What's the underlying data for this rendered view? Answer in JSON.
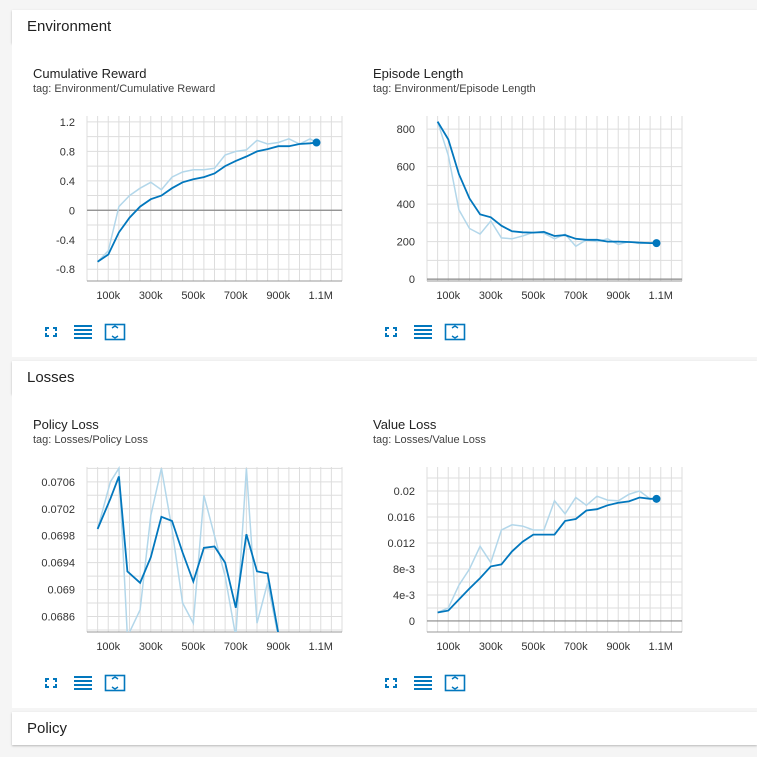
{
  "sections": [
    {
      "name": "Environment"
    },
    {
      "name": "Losses"
    },
    {
      "name": "Policy"
    }
  ],
  "toolbar_icons": [
    "fullscreen-icon",
    "toggle-log-scale-icon",
    "fit-domain-icon"
  ],
  "colors": {
    "smoothed": "#0277bd",
    "raw": "#b3d7ea",
    "grid": "#dddddd",
    "axis": "#999999"
  },
  "chart_data": [
    {
      "type": "line",
      "title": "Cumulative Reward",
      "tag": "tag: Environment/Cumulative Reward",
      "x_ticks": [
        "100k",
        "300k",
        "500k",
        "700k",
        "900k",
        "1.1M"
      ],
      "y_ticks": [
        "1.2",
        "0.8",
        "0.4",
        "0",
        "-0.4",
        "-0.8"
      ],
      "y_tick_values": [
        1.2,
        0.8,
        0.4,
        0,
        -0.4,
        -0.8
      ],
      "x_tick_values": [
        100000,
        300000,
        500000,
        700000,
        900000,
        1100000
      ],
      "xlim": [
        0,
        1200000
      ],
      "ylim": [
        -0.96,
        1.28
      ],
      "grid": true,
      "series": [
        {
          "x": [
            50000,
            100000,
            150000,
            200000,
            250000,
            300000,
            350000,
            400000,
            450000,
            500000,
            550000,
            600000,
            650000,
            700000,
            750000,
            800000,
            850000,
            900000,
            950000,
            1000000,
            1050000,
            1080000
          ],
          "y": [
            -0.7,
            -0.6,
            -0.3,
            -0.1,
            0.05,
            0.15,
            0.2,
            0.3,
            0.38,
            0.42,
            0.45,
            0.5,
            0.6,
            0.67,
            0.73,
            0.8,
            0.83,
            0.87,
            0.87,
            0.9,
            0.91,
            0.92
          ]
        },
        {
          "x": [
            50000,
            100000,
            150000,
            200000,
            250000,
            300000,
            350000,
            400000,
            450000,
            500000,
            550000,
            600000,
            650000,
            700000,
            750000,
            800000,
            850000,
            900000,
            950000,
            1000000,
            1050000,
            1080000
          ],
          "y": [
            -0.7,
            -0.55,
            0.05,
            0.2,
            0.3,
            0.38,
            0.28,
            0.45,
            0.52,
            0.55,
            0.55,
            0.57,
            0.75,
            0.8,
            0.82,
            0.95,
            0.9,
            0.92,
            0.97,
            0.9,
            0.97,
            0.92
          ]
        }
      ]
    },
    {
      "type": "line",
      "title": "Episode Length",
      "tag": "tag: Environment/Episode Length",
      "x_ticks": [
        "100k",
        "300k",
        "500k",
        "700k",
        "900k",
        "1.1M"
      ],
      "y_ticks": [
        "800",
        "600",
        "400",
        "200",
        "0"
      ],
      "y_tick_values": [
        800,
        600,
        400,
        200,
        0
      ],
      "x_tick_values": [
        100000,
        300000,
        500000,
        700000,
        900000,
        1100000
      ],
      "xlim": [
        0,
        1200000
      ],
      "ylim": [
        -10,
        870
      ],
      "grid": true,
      "series": [
        {
          "x": [
            50000,
            100000,
            150000,
            200000,
            250000,
            300000,
            350000,
            400000,
            450000,
            500000,
            550000,
            600000,
            650000,
            700000,
            750000,
            800000,
            850000,
            900000,
            950000,
            1000000,
            1050000,
            1080000
          ],
          "y": [
            840,
            745,
            560,
            430,
            345,
            330,
            285,
            255,
            250,
            248,
            252,
            230,
            235,
            215,
            210,
            210,
            200,
            200,
            198,
            195,
            192,
            192
          ]
        },
        {
          "x": [
            50000,
            100000,
            150000,
            200000,
            250000,
            300000,
            350000,
            400000,
            450000,
            500000,
            550000,
            600000,
            650000,
            700000,
            750000,
            800000,
            850000,
            900000,
            950000,
            1000000,
            1050000,
            1080000
          ],
          "y": [
            840,
            660,
            370,
            270,
            240,
            310,
            220,
            215,
            230,
            250,
            245,
            215,
            240,
            175,
            210,
            200,
            215,
            185,
            200,
            190,
            195,
            192
          ]
        }
      ]
    },
    {
      "type": "line",
      "title": "Policy Loss",
      "tag": "tag: Losses/Policy Loss",
      "x_ticks": [
        "100k",
        "300k",
        "500k",
        "700k",
        "900k",
        "1.1M"
      ],
      "y_ticks": [
        "0.0706",
        "0.0702",
        "0.0698",
        "0.0694",
        "0.069",
        "0.0686"
      ],
      "y_tick_values": [
        0.0706,
        0.0702,
        0.0698,
        0.0694,
        0.069,
        0.0686
      ],
      "x_tick_values": [
        100000,
        300000,
        500000,
        700000,
        900000,
        1100000
      ],
      "xlim": [
        0,
        1200000
      ],
      "ylim": [
        0.06837,
        0.07082
      ],
      "grid": true,
      "series": [
        {
          "x": [
            50000,
            110000,
            150000,
            190000,
            250000,
            300000,
            350000,
            400000,
            450000,
            500000,
            550000,
            600000,
            650000,
            700000,
            750000,
            800000,
            850000,
            900000,
            950000,
            1000000,
            1040000
          ],
          "y": [
            0.0699,
            0.07035,
            0.07068,
            0.06927,
            0.0691,
            0.06948,
            0.07008,
            0.07002,
            0.06955,
            0.06912,
            0.06962,
            0.06964,
            0.0694,
            0.06873,
            0.06982,
            0.06927,
            0.06924,
            0.06835,
            0.06835,
            0.06835,
            0.06835
          ]
        },
        {
          "x": [
            50000,
            110000,
            150000,
            190000,
            250000,
            300000,
            350000,
            400000,
            450000,
            500000,
            550000,
            600000,
            650000,
            700000,
            750000,
            800000,
            850000,
            900000,
            950000,
            1000000,
            1040000
          ],
          "y": [
            0.0699,
            0.0706,
            0.0708,
            0.0683,
            0.0687,
            0.0701,
            0.0708,
            0.0699,
            0.0688,
            0.0685,
            0.0704,
            0.0698,
            0.0692,
            0.0683,
            0.0708,
            0.0685,
            0.0691,
            0.0683,
            0.0683,
            0.0683,
            0.0683
          ]
        }
      ]
    },
    {
      "type": "line",
      "title": "Value Loss",
      "tag": "tag: Losses/Value Loss",
      "x_ticks": [
        "100k",
        "300k",
        "500k",
        "700k",
        "900k",
        "1.1M"
      ],
      "y_ticks": [
        "0.02",
        "0.016",
        "0.012",
        "8e-3",
        "4e-3",
        "0"
      ],
      "y_tick_values": [
        0.02,
        0.016,
        0.012,
        0.008,
        0.004,
        0
      ],
      "x_tick_values": [
        100000,
        300000,
        500000,
        700000,
        900000,
        1100000
      ],
      "xlim": [
        0,
        1200000
      ],
      "ylim": [
        -0.0017,
        0.0237
      ],
      "grid": true,
      "series": [
        {
          "x": [
            50000,
            100000,
            150000,
            200000,
            250000,
            300000,
            350000,
            400000,
            450000,
            500000,
            550000,
            600000,
            650000,
            700000,
            750000,
            800000,
            850000,
            900000,
            950000,
            1000000,
            1050000,
            1080000
          ],
          "y": [
            0.0013,
            0.0016,
            0.0033,
            0.005,
            0.0066,
            0.0084,
            0.0087,
            0.0107,
            0.0122,
            0.0133,
            0.0133,
            0.0133,
            0.0154,
            0.0157,
            0.017,
            0.0172,
            0.0178,
            0.0182,
            0.0184,
            0.019,
            0.0188,
            0.0188
          ]
        },
        {
          "x": [
            50000,
            100000,
            150000,
            200000,
            250000,
            300000,
            350000,
            400000,
            450000,
            500000,
            550000,
            600000,
            650000,
            700000,
            750000,
            800000,
            850000,
            900000,
            950000,
            1000000,
            1050000,
            1080000
          ],
          "y": [
            0.0013,
            0.002,
            0.0055,
            0.008,
            0.0115,
            0.009,
            0.014,
            0.0148,
            0.0146,
            0.014,
            0.014,
            0.0185,
            0.0165,
            0.019,
            0.0178,
            0.0192,
            0.0186,
            0.0185,
            0.0195,
            0.02,
            0.0188,
            0.0188
          ]
        }
      ]
    }
  ]
}
